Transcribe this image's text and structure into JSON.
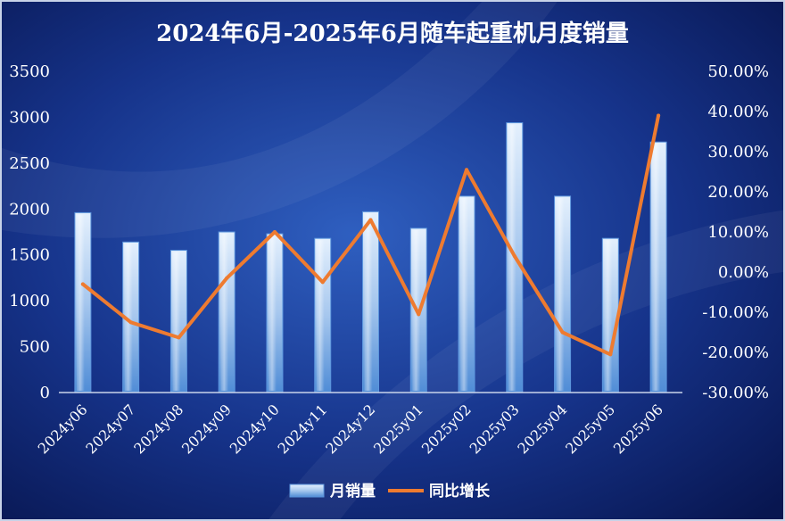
{
  "chart_data": {
    "type": "bar",
    "title": "2024年6月-2025年6月随车起重机月度销量",
    "categories": [
      "2024y06",
      "2024y07",
      "2024y08",
      "2024y09",
      "2024y10",
      "2024y11",
      "2024y12",
      "2025y01",
      "2025y02",
      "2025y03",
      "2025y04",
      "2025y05",
      "2025y06"
    ],
    "series": [
      {
        "name": "月销量",
        "type": "bar",
        "axis": "left",
        "color": "#a9c9ee",
        "values": [
          1960,
          1640,
          1550,
          1750,
          1730,
          1680,
          1970,
          1790,
          2140,
          2940,
          2140,
          1680,
          2730
        ]
      },
      {
        "name": "同比增长",
        "type": "line",
        "axis": "right",
        "color": "#ee7b30",
        "values": [
          -3.0,
          -12.5,
          -16.3,
          -1.5,
          10.0,
          -2.5,
          13.0,
          -10.5,
          25.5,
          4.0,
          -15.0,
          -20.5,
          39.0
        ]
      }
    ],
    "y_left": {
      "min": 0,
      "max": 3500,
      "ticks": [
        "0",
        "500",
        "1000",
        "1500",
        "2000",
        "2500",
        "3000",
        "3500"
      ]
    },
    "y_right": {
      "min": -30,
      "max": 50,
      "ticks": [
        "-30.00%",
        "-20.00%",
        "-10.00%",
        "0.00%",
        "10.00%",
        "20.00%",
        "30.00%",
        "40.00%",
        "50.00%"
      ]
    },
    "legend_position": "bottom",
    "grid": false
  }
}
